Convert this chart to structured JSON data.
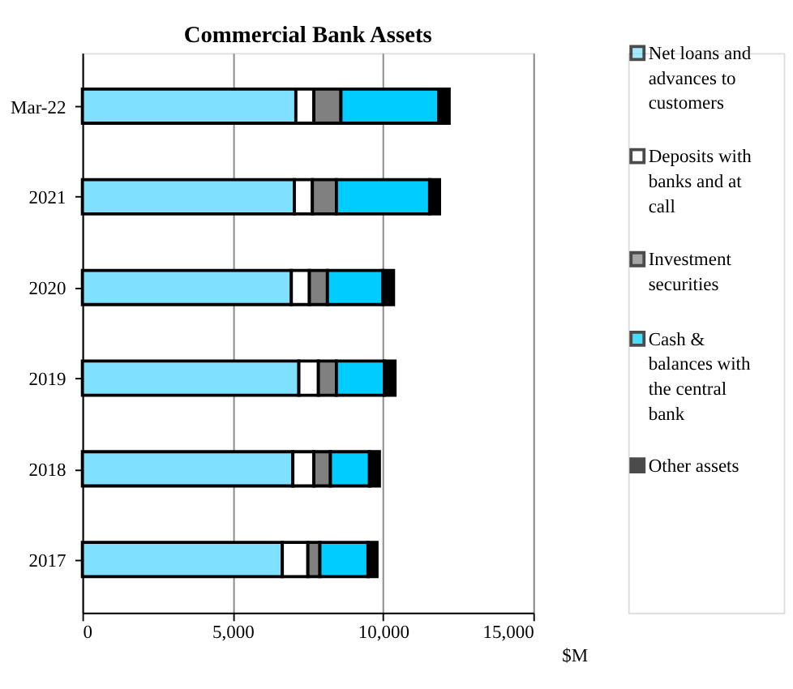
{
  "chart_data": {
    "type": "bar",
    "orientation": "horizontal",
    "stacked": true,
    "title": "Commercial Bank Assets",
    "xlabel": "$M",
    "categories": [
      "Mar-22",
      "2021",
      "2020",
      "2019",
      "2018",
      "2017"
    ],
    "series": [
      {
        "name": "Net loans and advances to customers",
        "color": "#80e0ff",
        "values": [
          7100,
          7050,
          6950,
          7200,
          7000,
          6650
        ]
      },
      {
        "name": "Deposits with banks and at call",
        "color": "#ffffff",
        "values": [
          600,
          600,
          600,
          650,
          700,
          850
        ]
      },
      {
        "name": "Investment securities",
        "color": "#808080",
        "values": [
          900,
          800,
          600,
          600,
          550,
          400
        ]
      },
      {
        "name": "Cash & balances with the central bank",
        "color": "#00ccff",
        "values": [
          3250,
          3100,
          1850,
          1600,
          1300,
          1600
        ]
      },
      {
        "name": "Other assets",
        "color": "#000000",
        "values": [
          350,
          330,
          350,
          350,
          330,
          300
        ]
      }
    ],
    "xlim": [
      0,
      15000
    ],
    "xticks": [
      0,
      {
        "value": 5000,
        "label": "5,000"
      },
      {
        "value": 10000,
        "label": "10,000"
      },
      {
        "value": 15000,
        "label": "15,000"
      }
    ],
    "grid": "x",
    "legend": "right"
  }
}
